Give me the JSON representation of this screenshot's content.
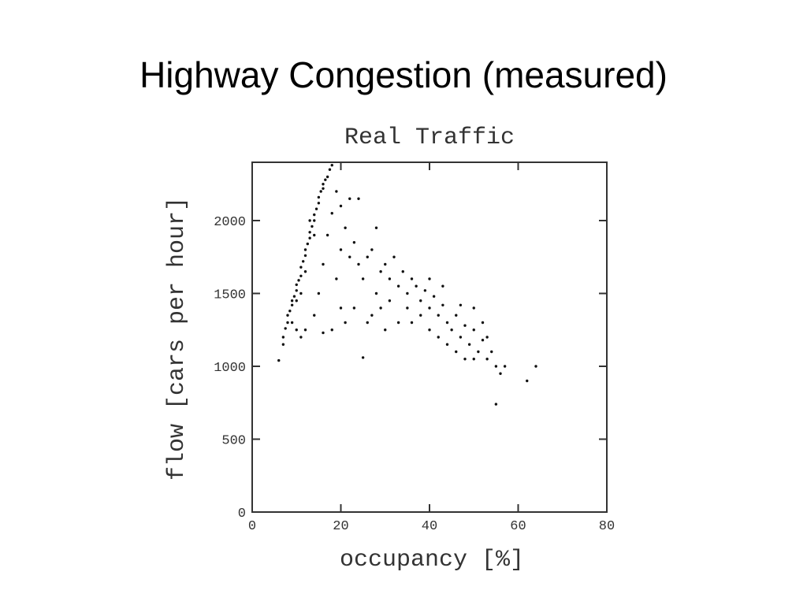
{
  "slide": {
    "title": "Highway Congestion (measured)"
  },
  "chart_data": {
    "type": "scatter",
    "title": "Real Traffic",
    "x_label": "occupancy [%]",
    "y_label": "flow [cars per hour]",
    "color": "#111111",
    "xlim": [
      0,
      80
    ],
    "ylim": [
      0,
      2400
    ],
    "xticks": [
      0,
      20,
      40,
      60,
      80
    ],
    "yticks": [
      0,
      500,
      1000,
      1500,
      2000
    ],
    "x": [
      6,
      7,
      7,
      7.5,
      8,
      8,
      8.5,
      9,
      9,
      9.5,
      10,
      10,
      10.5,
      11,
      11,
      11.5,
      12,
      12,
      12.5,
      13,
      13,
      13.5,
      14,
      14,
      14.5,
      15,
      15,
      15.5,
      16,
      16,
      16.5,
      17,
      17.5,
      18,
      10,
      9,
      12,
      11,
      14,
      13,
      11,
      14,
      12,
      10,
      15,
      16,
      17,
      18,
      19,
      20,
      21,
      22,
      24,
      20,
      22,
      19,
      20,
      21,
      18,
      16,
      25,
      23,
      24,
      25,
      26,
      27,
      28,
      28,
      27,
      29,
      30,
      31,
      32,
      33,
      34,
      35,
      36,
      35,
      33,
      30,
      37,
      38,
      39,
      40,
      41,
      42,
      43,
      44,
      45,
      46,
      47,
      48,
      49,
      50,
      51,
      52,
      53,
      54,
      55,
      56,
      57,
      55,
      62,
      64,
      40,
      42,
      44,
      38,
      36,
      46,
      48,
      50,
      52,
      40,
      43,
      47,
      50,
      53,
      31,
      29,
      26,
      23
    ],
    "values": [
      1040,
      1150,
      1200,
      1260,
      1300,
      1350,
      1380,
      1420,
      1450,
      1480,
      1520,
      1560,
      1590,
      1620,
      1680,
      1720,
      1760,
      1800,
      1840,
      1880,
      1920,
      1960,
      2000,
      2040,
      2080,
      2120,
      2160,
      2200,
      2220,
      2250,
      2280,
      2300,
      2350,
      2380,
      1450,
      1300,
      1650,
      1500,
      1900,
      2000,
      1200,
      1350,
      1250,
      1250,
      1500,
      1700,
      1900,
      2050,
      2200,
      2100,
      1950,
      2150,
      2150,
      1800,
      1750,
      1600,
      1400,
      1300,
      1250,
      1230,
      1060,
      1850,
      1700,
      1600,
      1750,
      1800,
      1950,
      1500,
      1350,
      1650,
      1700,
      1600,
      1750,
      1550,
      1650,
      1500,
      1600,
      1400,
      1300,
      1250,
      1550,
      1450,
      1520,
      1400,
      1480,
      1350,
      1420,
      1300,
      1250,
      1350,
      1200,
      1280,
      1150,
      1250,
      1100,
      1180,
      1050,
      1100,
      1000,
      950,
      1000,
      740,
      900,
      1000,
      1250,
      1200,
      1150,
      1350,
      1300,
      1100,
      1050,
      1400,
      1300,
      1600,
      1550,
      1420,
      1050,
      1200,
      1450,
      1400,
      1300,
      1400
    ]
  }
}
